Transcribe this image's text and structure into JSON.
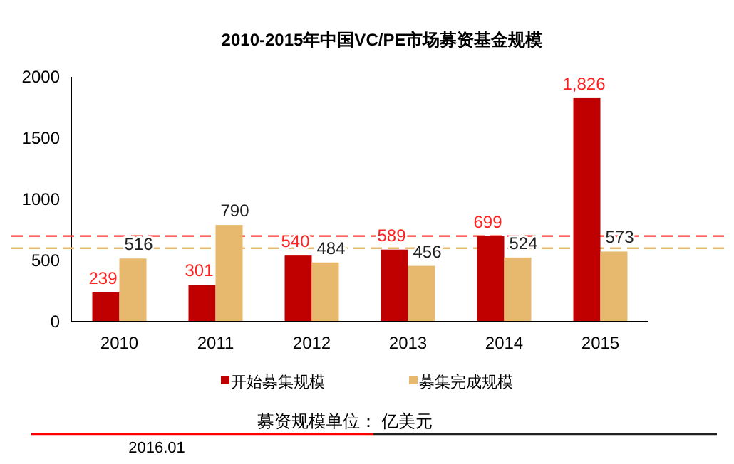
{
  "chart_data": {
    "type": "bar",
    "title": "2010-2015年中国VC/PE市场募资基金规模",
    "categories": [
      "2010",
      "2011",
      "2012",
      "2013",
      "2014",
      "2015"
    ],
    "series": [
      {
        "name": "开始募集规模",
        "color": "#c00000",
        "values": [
          239,
          301,
          540,
          589,
          699,
          1826
        ],
        "value_labels": [
          "239",
          "301",
          "540",
          "589",
          "699",
          "1,826"
        ]
      },
      {
        "name": "募集完成规模",
        "color": "#e6b96e",
        "values": [
          516,
          790,
          484,
          456,
          524,
          573
        ],
        "value_labels": [
          "516",
          "790",
          "484",
          "456",
          "524",
          "573"
        ]
      }
    ],
    "ylim": [
      0,
      2000
    ],
    "yticks": [
      0,
      500,
      1000,
      1500,
      2000
    ],
    "legend": "bottom",
    "ref_lines": [
      {
        "axis": "y",
        "value": 700,
        "color": "#ff3030",
        "line_style": "dashed"
      },
      {
        "axis": "y",
        "value": 600,
        "color": "#e6b96e",
        "line_style": "dashed"
      }
    ],
    "annotations": [
      "募资规模单位：  亿美元",
      "2016.01"
    ]
  }
}
